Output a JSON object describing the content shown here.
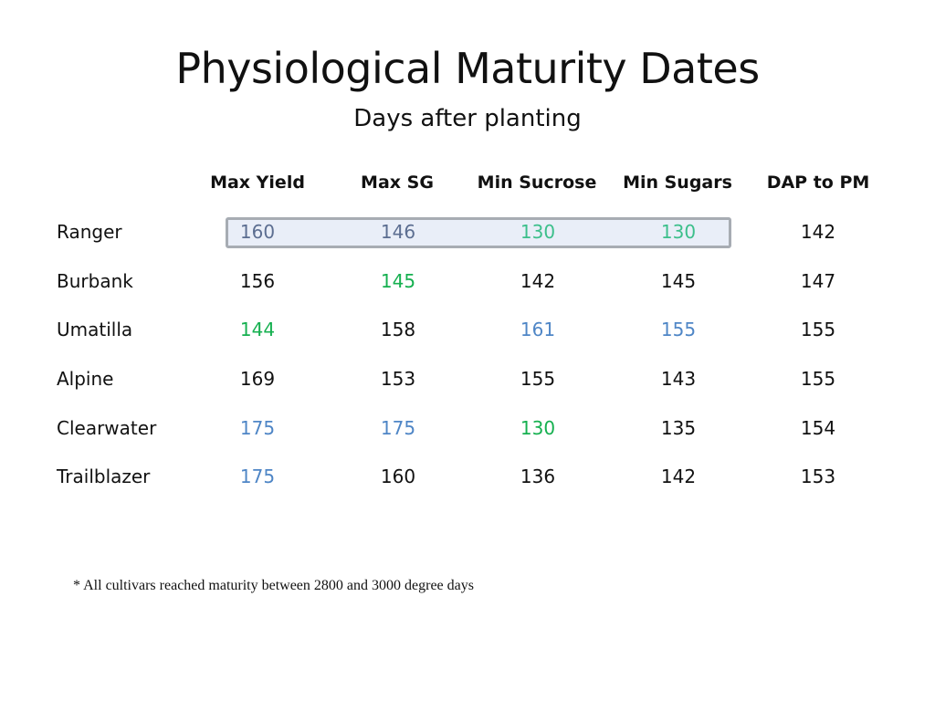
{
  "slide": {
    "title": "Physiological Maturity Dates",
    "subtitle": "Days after planting",
    "footnote": "* All cultivars reached maturity between 2800 and 3000 degree days"
  },
  "table": {
    "columns": [
      "Max Yield",
      "Max SG",
      "Min Sucrose",
      "Min Sugars",
      "DAP to PM"
    ],
    "rows": [
      {
        "cultivar": "Ranger",
        "values": [
          "160",
          "146",
          "130",
          "130",
          "142"
        ],
        "colors": [
          "#5c6e91",
          "#5c6e91",
          "#3cbf8b",
          "#3cbf8b",
          "#111111"
        ],
        "highlighted": true
      },
      {
        "cultivar": "Burbank",
        "values": [
          "156",
          "145",
          "142",
          "145",
          "147"
        ],
        "colors": [
          "#111111",
          "#16b050",
          "#111111",
          "#111111",
          "#111111"
        ]
      },
      {
        "cultivar": "Umatilla",
        "values": [
          "144",
          "158",
          "161",
          "155",
          "155"
        ],
        "colors": [
          "#16b050",
          "#111111",
          "#4f86c6",
          "#4f86c6",
          "#111111"
        ]
      },
      {
        "cultivar": "Alpine",
        "values": [
          "169",
          "153",
          "155",
          "143",
          "155"
        ],
        "colors": [
          "#111111",
          "#111111",
          "#111111",
          "#111111",
          "#111111"
        ]
      },
      {
        "cultivar": "Clearwater",
        "values": [
          "175",
          "175",
          "130",
          "135",
          "154"
        ],
        "colors": [
          "#4f86c6",
          "#4f86c6",
          "#16b050",
          "#111111",
          "#111111"
        ]
      },
      {
        "cultivar": "Trailblazer",
        "values": [
          "175",
          "160",
          "136",
          "142",
          "153"
        ],
        "colors": [
          "#4f86c6",
          "#111111",
          "#111111",
          "#111111",
          "#111111"
        ]
      }
    ]
  }
}
